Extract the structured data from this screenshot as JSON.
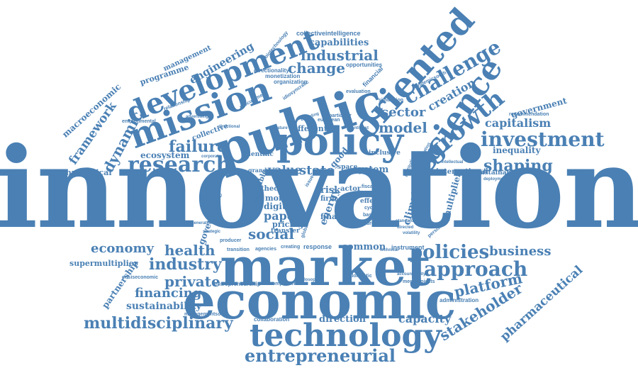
{
  "colors": {
    "word": "#4a80b4",
    "background": "#ffffff"
  },
  "words": [
    "innovation",
    "market",
    "economic",
    "public",
    "policy",
    "mission",
    "development",
    "oriented",
    "science",
    "growth",
    "challenge",
    "investment",
    "technology",
    "entrepreneurial",
    "research",
    "industry",
    "industrial",
    "change",
    "capabilities",
    "collectiveintelligence",
    "approach",
    "policies",
    "platform",
    "business",
    "stakeholder",
    "pharmaceutical",
    "capacity",
    "multidisciplinary",
    "financing",
    "sustainability",
    "private",
    "health",
    "economy",
    "supermultiplier",
    "partnership",
    "technological",
    "framework",
    "dynamic",
    "macroeconomic",
    "engineering",
    "management",
    "programme",
    "failure",
    "ecosystem",
    "social",
    "value",
    "state",
    "system",
    "model",
    "sector",
    "creation",
    "capitalism",
    "shaping",
    "inequality",
    "government",
    "recommendation",
    "international",
    "sustainable",
    "different",
    "directionality",
    "organization",
    "monetization",
    "opportunities",
    "financial",
    "evaluation",
    "direction",
    "collaboration",
    "entrepreneurship",
    "administration",
    "common",
    "response",
    "creating",
    "agencies",
    "climate",
    "multiplier",
    "energy",
    "finance",
    "risk",
    "paper",
    "digital",
    "more",
    "renewable",
    "reward",
    "governance",
    "pricing",
    "transfer",
    "theory",
    "actor",
    "firm",
    "topic",
    "effect",
    "space",
    "inclusive",
    "scientific",
    "corporate",
    "collective",
    "environmental",
    "relationship",
    "biotechnology",
    "complement",
    "managementsouth",
    "crisiseconomic",
    "megaprojects",
    "deployment",
    "pandemicsouth",
    "institution",
    "particular",
    "crowding",
    "european",
    "antitrust",
    "idiosyncratic",
    "simulation",
    "procurement",
    "literature",
    "directed",
    "standard",
    "intellectual",
    "future",
    "based",
    "instrument",
    "fiscal",
    "issue",
    "cycle",
    "global",
    "directional",
    "transition",
    "producer",
    "strategic",
    "generation",
    "domestic",
    "philosophy",
    "good",
    "technical",
    "volatility",
    "advertising",
    "grand",
    "accountability",
    "persistence",
    "mobilization"
  ]
}
